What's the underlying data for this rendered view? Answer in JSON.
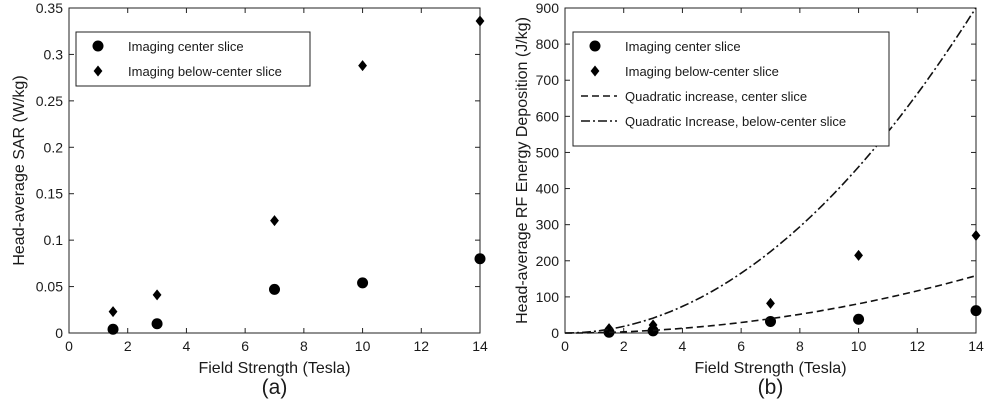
{
  "chart_data": [
    {
      "type": "scatter",
      "panel_label": "(a)",
      "xlabel": "Field Strength (Tesla)",
      "ylabel": "Head-average SAR (W/kg)",
      "xlim": [
        0,
        14
      ],
      "ylim": [
        0,
        0.35
      ],
      "x_ticks": [
        "0",
        "2",
        "4",
        "6",
        "8",
        "10",
        "12",
        "14"
      ],
      "y_ticks": [
        "0",
        "0.05",
        "0.1",
        "0.15",
        "0.2",
        "0.25",
        "0.3",
        "0.35"
      ],
      "grid": false,
      "legend_position": "top-left",
      "series": [
        {
          "name": "Imaging center slice",
          "marker": "circle",
          "x": [
            1.5,
            3,
            7,
            10,
            14
          ],
          "y": [
            0.004,
            0.01,
            0.047,
            0.054,
            0.08
          ]
        },
        {
          "name": "Imaging below-center slice",
          "marker": "diamond",
          "x": [
            1.5,
            3,
            7,
            10,
            14
          ],
          "y": [
            0.023,
            0.041,
            0.121,
            0.288,
            0.336
          ]
        }
      ]
    },
    {
      "type": "scatter",
      "panel_label": "(b)",
      "xlabel": "Field Strength (Tesla)",
      "ylabel": "Head-average RF Energy Deposition (J/kg)",
      "xlim": [
        0,
        14
      ],
      "ylim": [
        0,
        900
      ],
      "x_ticks": [
        "0",
        "2",
        "4",
        "6",
        "8",
        "10",
        "12",
        "14"
      ],
      "y_ticks": [
        "0",
        "100",
        "200",
        "300",
        "400",
        "500",
        "600",
        "700",
        "800",
        "900"
      ],
      "grid": false,
      "legend_position": "top-left",
      "series": [
        {
          "name": "Imaging center slice",
          "marker": "circle",
          "x": [
            1.5,
            3,
            7,
            10,
            14
          ],
          "y": [
            2,
            6,
            32,
            38,
            62
          ]
        },
        {
          "name": "Imaging below-center slice",
          "marker": "diamond",
          "x": [
            1.5,
            3,
            7,
            10,
            14
          ],
          "y": [
            12,
            22,
            82,
            215,
            270
          ]
        },
        {
          "name": "Quadratic increase, center slice",
          "line": "dashed",
          "coef": 0.81
        },
        {
          "name": "Quadratic Increase, below-center slice",
          "line": "dashdot",
          "coef": 4.6
        }
      ]
    }
  ]
}
